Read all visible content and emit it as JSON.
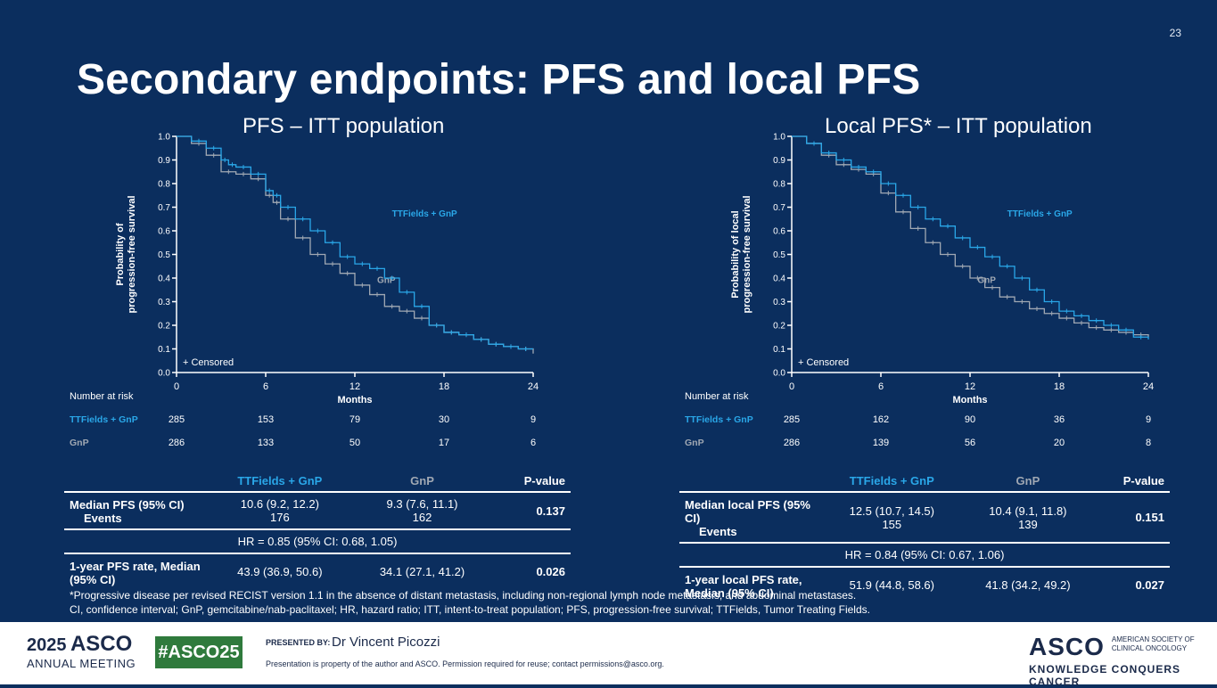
{
  "page_number": "23",
  "title": "Secondary endpoints: PFS and local PFS",
  "colors": {
    "background": "#0b2e5e",
    "ttfields": "#2aa7e8",
    "gnp": "#a0a8b3"
  },
  "chart_data": [
    {
      "type": "line",
      "title": "PFS – ITT population",
      "xlabel": "Months",
      "ylabel_line1": "Probability of",
      "ylabel_line2": "progression-free survival",
      "xlim": [
        0,
        24
      ],
      "ylim": [
        0,
        1
      ],
      "x_ticks": [
        "0",
        "6",
        "12",
        "18",
        "24"
      ],
      "y_ticks": [
        "0.0",
        "0.1",
        "0.2",
        "0.3",
        "0.4",
        "0.5",
        "0.6",
        "0.7",
        "0.8",
        "0.9",
        "1.0"
      ],
      "censored_label": "+ Censored",
      "series": [
        {
          "name": "TTFields + GnP",
          "label_at": [
            14.5,
            0.66
          ],
          "x": [
            0,
            1,
            2,
            3,
            3.5,
            4,
            5,
            6,
            6.5,
            7,
            8,
            9,
            10,
            11,
            12,
            13,
            14,
            15,
            16,
            17,
            18,
            19,
            20,
            21,
            22,
            23,
            24
          ],
          "values": [
            1.0,
            0.98,
            0.95,
            0.9,
            0.88,
            0.87,
            0.84,
            0.77,
            0.75,
            0.7,
            0.65,
            0.6,
            0.55,
            0.49,
            0.46,
            0.44,
            0.4,
            0.34,
            0.28,
            0.2,
            0.17,
            0.16,
            0.14,
            0.12,
            0.11,
            0.1,
            0.1
          ]
        },
        {
          "name": "GnP",
          "label_at": [
            13.5,
            0.38
          ],
          "x": [
            0,
            1,
            2,
            3,
            4,
            5,
            6,
            6.5,
            7,
            8,
            9,
            10,
            11,
            12,
            13,
            14,
            15,
            16,
            17,
            18,
            19,
            20,
            21,
            22,
            23,
            24
          ],
          "values": [
            1.0,
            0.97,
            0.92,
            0.85,
            0.84,
            0.82,
            0.75,
            0.72,
            0.65,
            0.57,
            0.5,
            0.46,
            0.42,
            0.37,
            0.33,
            0.28,
            0.26,
            0.23,
            0.2,
            0.17,
            0.16,
            0.14,
            0.12,
            0.11,
            0.1,
            0.08
          ]
        }
      ],
      "risk_table": {
        "header": "Number at risk",
        "rows": [
          {
            "name": "TTFields + GnP",
            "values": [
              "285",
              "153",
              "79",
              "30",
              "9"
            ]
          },
          {
            "name": "GnP",
            "values": [
              "286",
              "133",
              "50",
              "17",
              "6"
            ]
          }
        ]
      }
    },
    {
      "type": "line",
      "title": "Local PFS* – ITT population",
      "xlabel": "Months",
      "ylabel_line1": "Probability of local",
      "ylabel_line2": "progression-free survival",
      "xlim": [
        0,
        24
      ],
      "ylim": [
        0,
        1
      ],
      "x_ticks": [
        "0",
        "6",
        "12",
        "18",
        "24"
      ],
      "y_ticks": [
        "0.0",
        "0.1",
        "0.2",
        "0.3",
        "0.4",
        "0.5",
        "0.6",
        "0.7",
        "0.8",
        "0.9",
        "1.0"
      ],
      "censored_label": "+ Censored",
      "series": [
        {
          "name": "TTFields + GnP",
          "label_at": [
            14.5,
            0.66
          ],
          "x": [
            0,
            1,
            2,
            3,
            4,
            5,
            6,
            7,
            8,
            9,
            10,
            11,
            12,
            13,
            14,
            15,
            16,
            17,
            18,
            19,
            20,
            21,
            22,
            23,
            24
          ],
          "values": [
            1.0,
            0.97,
            0.93,
            0.9,
            0.87,
            0.85,
            0.8,
            0.75,
            0.7,
            0.65,
            0.62,
            0.57,
            0.53,
            0.49,
            0.45,
            0.4,
            0.35,
            0.3,
            0.26,
            0.24,
            0.22,
            0.2,
            0.18,
            0.15,
            0.14
          ]
        },
        {
          "name": "GnP",
          "label_at": [
            12.5,
            0.38
          ],
          "x": [
            0,
            1,
            2,
            3,
            4,
            5,
            6,
            7,
            8,
            9,
            10,
            11,
            12,
            13,
            14,
            15,
            16,
            17,
            18,
            19,
            20,
            21,
            22,
            23,
            24
          ],
          "values": [
            1.0,
            0.97,
            0.92,
            0.88,
            0.86,
            0.84,
            0.76,
            0.68,
            0.61,
            0.55,
            0.5,
            0.45,
            0.4,
            0.36,
            0.32,
            0.3,
            0.27,
            0.25,
            0.23,
            0.21,
            0.19,
            0.18,
            0.17,
            0.16,
            0.15
          ]
        }
      ],
      "risk_table": {
        "header": "Number at risk",
        "rows": [
          {
            "name": "TTFields + GnP",
            "values": [
              "285",
              "162",
              "90",
              "36",
              "9"
            ]
          },
          {
            "name": "GnP",
            "values": [
              "286",
              "139",
              "56",
              "20",
              "8"
            ]
          }
        ]
      }
    }
  ],
  "left_table": {
    "headers": [
      "",
      "TTFields + GnP",
      "GnP",
      "P-value"
    ],
    "row1_label_a": "Median PFS (95% CI)",
    "row1_label_b": "Events",
    "row1_ttf_a": "10.6 (9.2, 12.2)",
    "row1_ttf_b": "176",
    "row1_gnp_a": "9.3 (7.6, 11.1)",
    "row1_gnp_b": "162",
    "row1_p": "0.137",
    "hr": "HR = 0.85 (95% CI: 0.68, 1.05)",
    "row2_label": "1-year PFS rate, Median (95% CI)",
    "row2_ttf": "43.9 (36.9, 50.6)",
    "row2_gnp": "34.1 (27.1, 41.2)",
    "row2_p": "0.026"
  },
  "right_table": {
    "headers": [
      "",
      "TTFields + GnP",
      "GnP",
      "P-value"
    ],
    "row1_label_a": "Median local PFS (95% CI)",
    "row1_label_b": "Events",
    "row1_ttf_a": "12.5 (10.7, 14.5)",
    "row1_ttf_b": "155",
    "row1_gnp_a": "10.4 (9.1, 11.8)",
    "row1_gnp_b": "139",
    "row1_p": "0.151",
    "hr": "HR = 0.84 (95% CI: 0.67, 1.06)",
    "row2_label": "1-year local PFS rate, Median (95% CI)",
    "row2_ttf": "51.9 (44.8, 58.6)",
    "row2_gnp": "41.8 (34.2, 49.2)",
    "row2_p": "0.027"
  },
  "footnote_1": "*Progressive disease per revised RECIST version 1.1 in the absence of distant metastasis, including non-regional lymph node metastasis, and abdominal metastases.",
  "footnote_2": "CI, confidence interval; GnP, gemcitabine/nab-paclitaxel; HR, hazard ratio; ITT, intent-to-treat population; PFS, progression-free survival; TTFields, Tumor Treating Fields.",
  "footer": {
    "year": "2025",
    "asco": "ASCO",
    "annual_meeting": "ANNUAL MEETING",
    "hashtag": "#ASCO25",
    "presented_by": "PRESENTED BY:",
    "presenter": "Dr Vincent Picozzi",
    "property_note": "Presentation is property of the author and ASCO. Permission required for reuse; contact permissions@asco.org.",
    "asco_right": "ASCO",
    "society_line1": "AMERICAN SOCIETY OF",
    "society_line2": "CLINICAL ONCOLOGY",
    "tagline": "KNOWLEDGE CONQUERS CANCER"
  }
}
